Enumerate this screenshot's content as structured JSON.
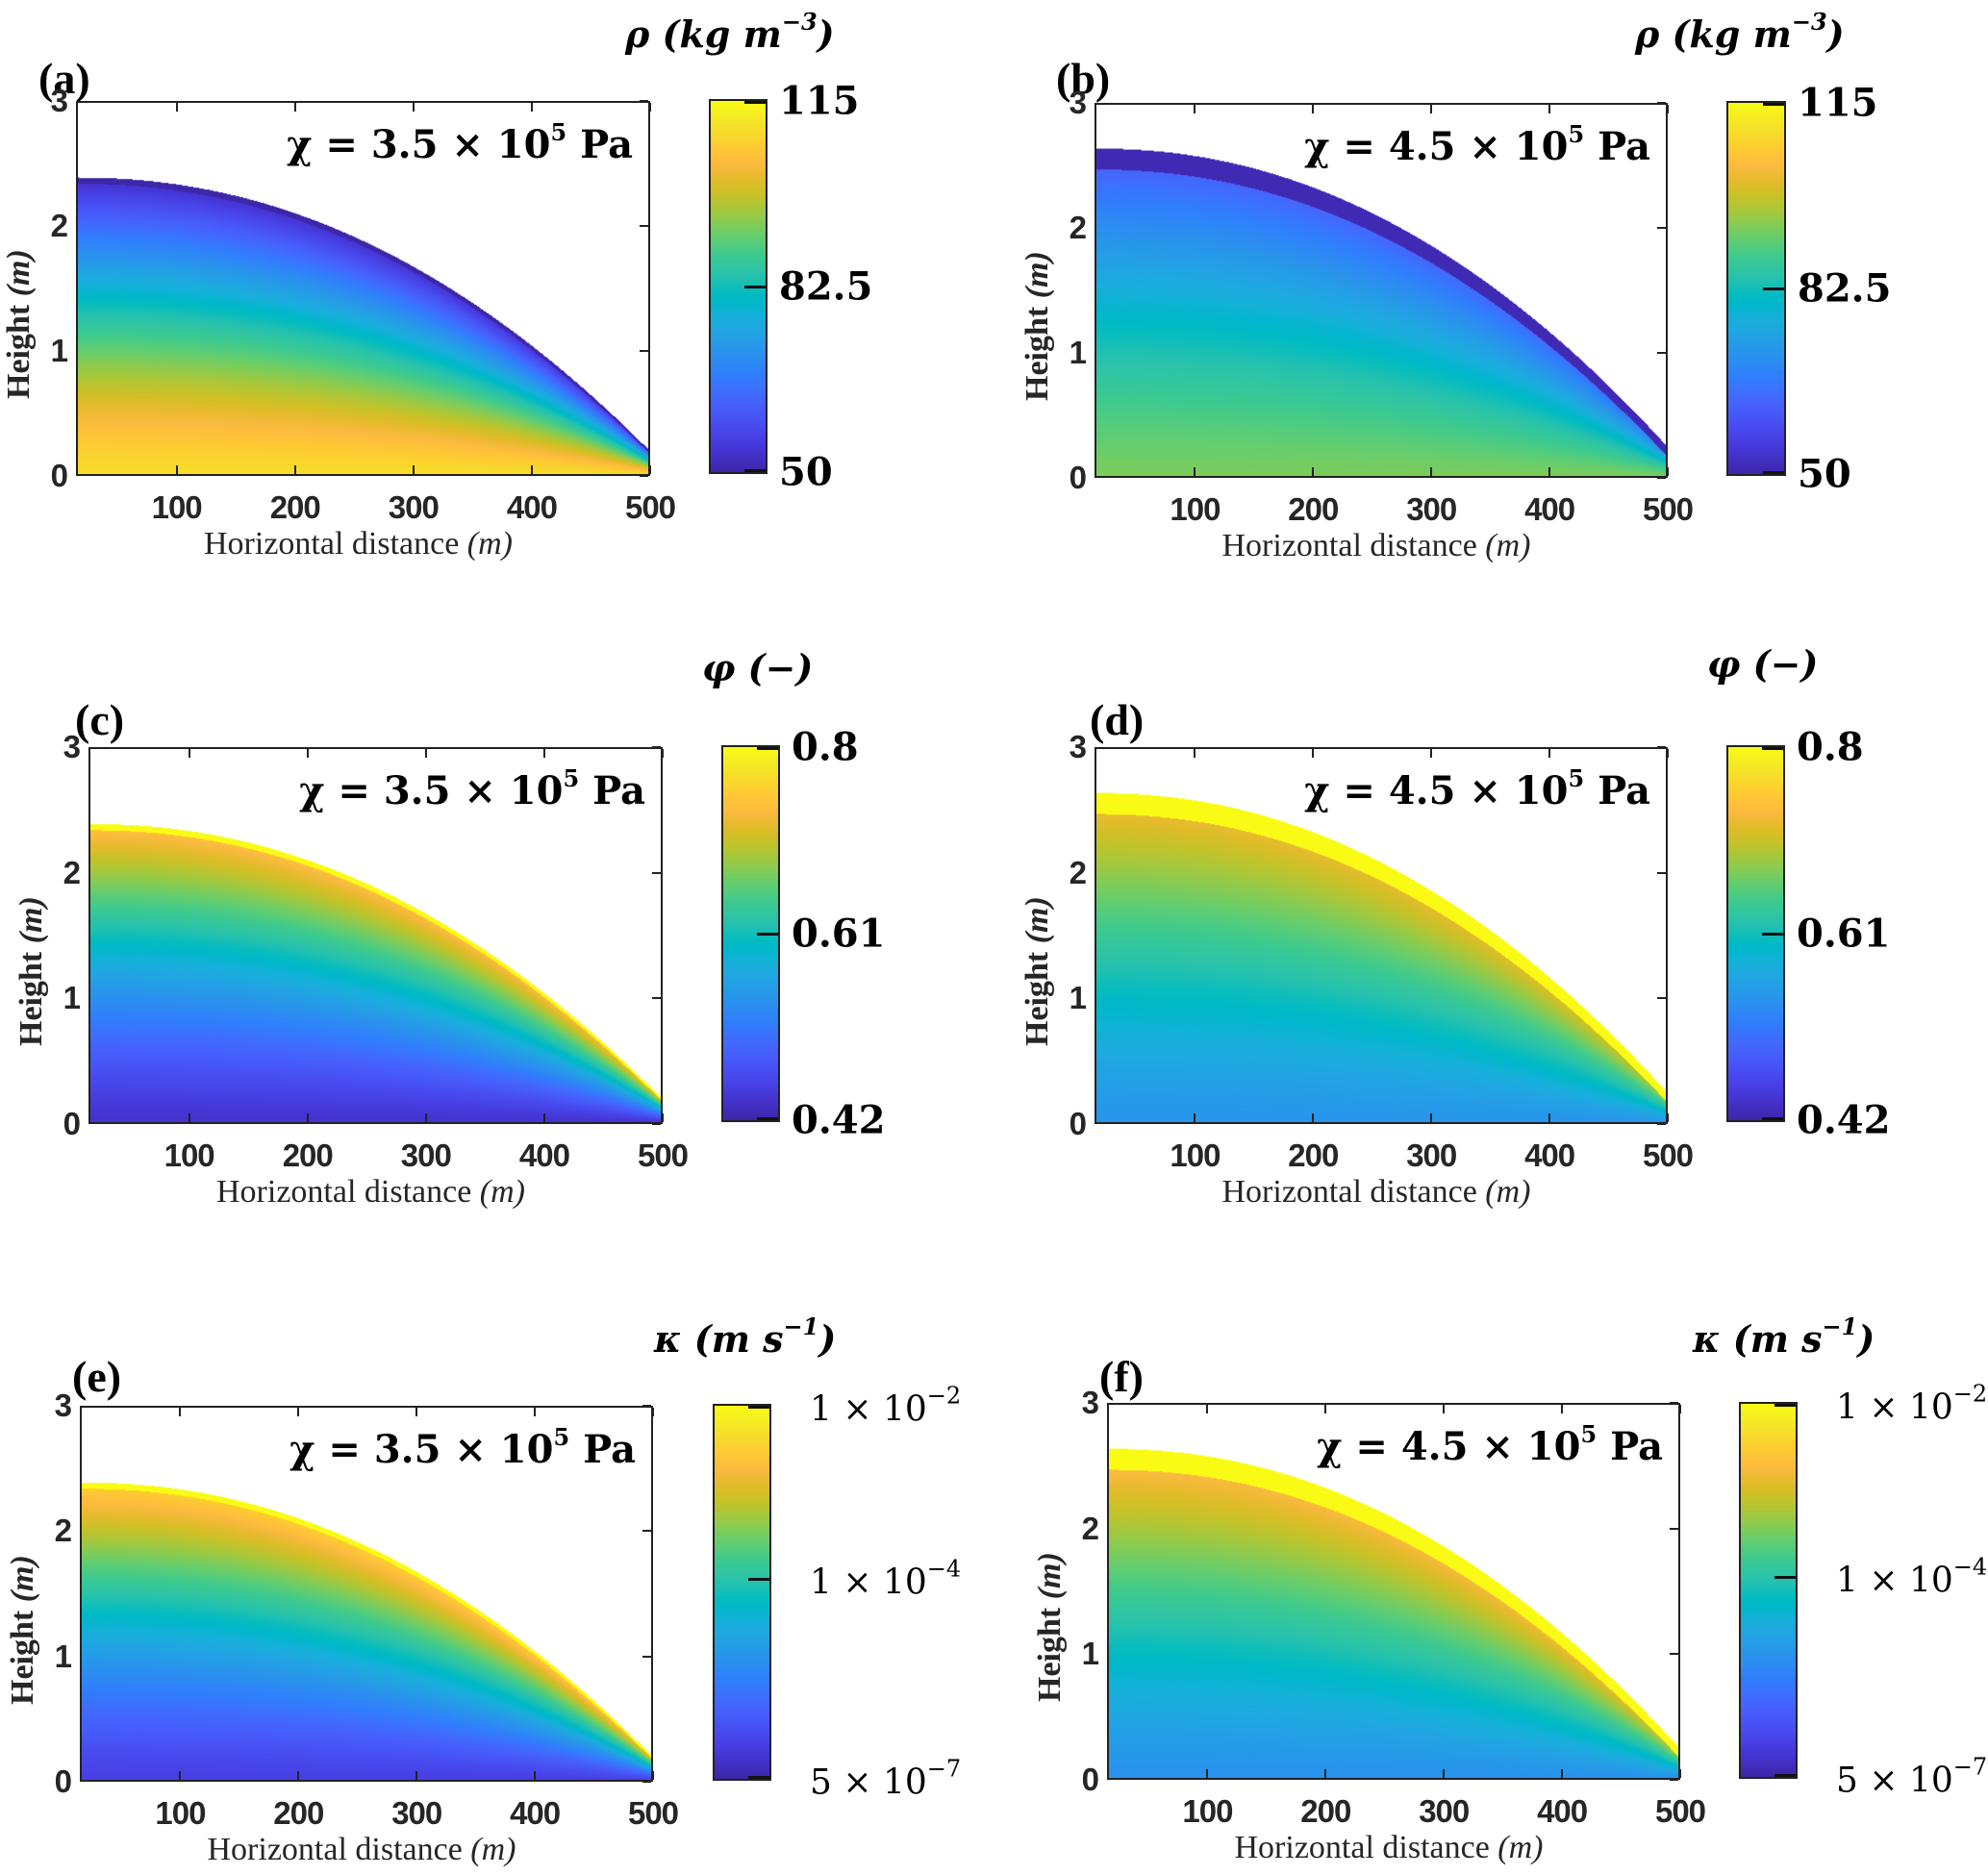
{
  "figure": {
    "xlabel_text": "Horizontal distance ",
    "xlabel_unit": "(m)",
    "ylabel_text": "Height ",
    "ylabel_unit": "(m)",
    "xticks": [
      "100",
      "200",
      "300",
      "400",
      "500"
    ],
    "yticks": [
      "0",
      "1",
      "2",
      "3"
    ]
  },
  "chart_data": [
    {
      "id": "a",
      "panel_label": "(a)",
      "type": "heatmap",
      "annotation": "χ = 3.5 × 10",
      "annotation_exp": "5",
      "annotation_unit": " Pa",
      "variable": "ρ",
      "colorbar_title": "ρ (kg m",
      "colorbar_title_exp": "−3",
      "colorbar_title_end": ")",
      "colorbar_scale": "linear",
      "clim": [
        50,
        115
      ],
      "colorbar_ticks": [
        {
          "value": 115,
          "label": "115"
        },
        {
          "value": 82.5,
          "label": "82.5"
        },
        {
          "value": 50,
          "label": "50"
        }
      ],
      "xlim": [
        15,
        500
      ],
      "ylim": [
        0,
        3
      ],
      "xlabel": "Horizontal distance (m)",
      "ylabel": "Height (m)",
      "dome_height_at_x0": 2.4,
      "dome_height_at_x500": 0.2,
      "field_description": "high density (~110) near base, decreasing upward to ~55 at the free surface",
      "value_bottom": 110,
      "value_top": 52,
      "surface_band_value": 50,
      "surface_band_thickness": 0.05
    },
    {
      "id": "b",
      "panel_label": "(b)",
      "type": "heatmap",
      "annotation": "χ = 4.5 × 10",
      "annotation_exp": "5",
      "annotation_unit": " Pa",
      "variable": "ρ",
      "colorbar_title": "ρ (kg m",
      "colorbar_title_exp": "−3",
      "colorbar_title_end": ")",
      "colorbar_scale": "linear",
      "clim": [
        50,
        115
      ],
      "colorbar_ticks": [
        {
          "value": 115,
          "label": "115"
        },
        {
          "value": 82.5,
          "label": "82.5"
        },
        {
          "value": 50,
          "label": "50"
        }
      ],
      "xlim": [
        15,
        500
      ],
      "ylim": [
        0,
        3
      ],
      "xlabel": "Horizontal distance (m)",
      "ylabel": "Height (m)",
      "dome_height_at_x0": 2.65,
      "dome_height_at_x500": 0.25,
      "field_description": "moderate density (~92) near base, decreasing upward to ~55, thick low-density surface band",
      "value_bottom": 93,
      "value_top": 60,
      "surface_band_value": 51,
      "surface_band_thickness": 0.17
    },
    {
      "id": "c",
      "panel_label": "(c)",
      "type": "heatmap",
      "annotation": "χ = 3.5 × 10",
      "annotation_exp": "5",
      "annotation_unit": " Pa",
      "variable": "φ",
      "colorbar_title": "φ (−)",
      "colorbar_title_exp": "",
      "colorbar_title_end": "",
      "colorbar_scale": "linear",
      "clim": [
        0.42,
        0.8
      ],
      "colorbar_ticks": [
        {
          "value": 0.8,
          "label": "0.8"
        },
        {
          "value": 0.61,
          "label": "0.61"
        },
        {
          "value": 0.42,
          "label": "0.42"
        }
      ],
      "xlim": [
        15,
        500
      ],
      "ylim": [
        0,
        3
      ],
      "xlabel": "Horizontal distance (m)",
      "ylabel": "Height (m)",
      "dome_height_at_x0": 2.4,
      "dome_height_at_x500": 0.2,
      "field_description": "low porosity (~0.44) near base, increasing upward to ~0.78 at the free surface",
      "value_bottom": 0.44,
      "value_top": 0.75,
      "surface_band_value": 0.8,
      "surface_band_thickness": 0.05
    },
    {
      "id": "d",
      "panel_label": "(d)",
      "type": "heatmap",
      "annotation": "χ = 4.5 × 10",
      "annotation_exp": "5",
      "annotation_unit": " Pa",
      "variable": "φ",
      "colorbar_title": "φ (−)",
      "colorbar_title_exp": "",
      "colorbar_title_end": "",
      "colorbar_scale": "linear",
      "clim": [
        0.42,
        0.8
      ],
      "colorbar_ticks": [
        {
          "value": 0.8,
          "label": "0.8"
        },
        {
          "value": 0.61,
          "label": "0.61"
        },
        {
          "value": 0.42,
          "label": "0.42"
        }
      ],
      "xlim": [
        15,
        500
      ],
      "ylim": [
        0,
        3
      ],
      "xlabel": "Horizontal distance (m)",
      "ylabel": "Height (m)",
      "dome_height_at_x0": 2.65,
      "dome_height_at_x500": 0.25,
      "field_description": "porosity ~0.55 near base, increasing upward, thick ~0.8 surface band",
      "value_bottom": 0.545,
      "value_top": 0.74,
      "surface_band_value": 0.8,
      "surface_band_thickness": 0.17
    },
    {
      "id": "e",
      "panel_label": "(e)",
      "type": "heatmap",
      "annotation": "χ = 3.5 × 10",
      "annotation_exp": "5",
      "annotation_unit": " Pa",
      "variable": "κ",
      "colorbar_title": "κ (m s",
      "colorbar_title_exp": "−1",
      "colorbar_title_end": ")",
      "colorbar_scale": "log",
      "clim": [
        5e-07,
        0.01
      ],
      "colorbar_ticks": [
        {
          "value": 0.01,
          "label": "1 × 10",
          "exp": "−2"
        },
        {
          "value": 0.0001,
          "label": "1 × 10",
          "exp": "−4"
        },
        {
          "value": 5e-07,
          "label": "5 × 10",
          "exp": "−7"
        }
      ],
      "xlim": [
        15,
        500
      ],
      "ylim": [
        0,
        3
      ],
      "xlabel": "Horizontal distance (m)",
      "ylabel": "Height (m)",
      "dome_height_at_x0": 2.4,
      "dome_height_at_x500": 0.2,
      "field_description": "low conductivity near base, increasing upward to ~1e-2 at the free surface",
      "value_bottom": 1.2e-06,
      "value_top": 0.004,
      "surface_band_value": 0.01,
      "surface_band_thickness": 0.05
    },
    {
      "id": "f",
      "panel_label": "(f)",
      "type": "heatmap",
      "annotation": "χ = 4.5 × 10",
      "annotation_exp": "5",
      "annotation_unit": " Pa",
      "variable": "κ",
      "colorbar_title": "κ (m s",
      "colorbar_title_exp": "−1",
      "colorbar_title_end": ")",
      "colorbar_scale": "log",
      "clim": [
        5e-07,
        0.01
      ],
      "colorbar_ticks": [
        {
          "value": 0.01,
          "label": "1 × 10",
          "exp": "−2"
        },
        {
          "value": 0.0001,
          "label": "1 × 10",
          "exp": "−4"
        },
        {
          "value": 5e-07,
          "label": "5 × 10",
          "exp": "−7"
        }
      ],
      "xlim": [
        15,
        500
      ],
      "ylim": [
        0,
        3
      ],
      "xlabel": "Horizontal distance (m)",
      "ylabel": "Height (m)",
      "dome_height_at_x0": 2.65,
      "dome_height_at_x500": 0.25,
      "field_description": "conductivity ~1e-5 near base, increasing upward, thick ~1e-2 surface band",
      "value_bottom": 1.2e-05,
      "value_top": 0.003,
      "surface_band_value": 0.01,
      "surface_band_thickness": 0.17
    }
  ]
}
